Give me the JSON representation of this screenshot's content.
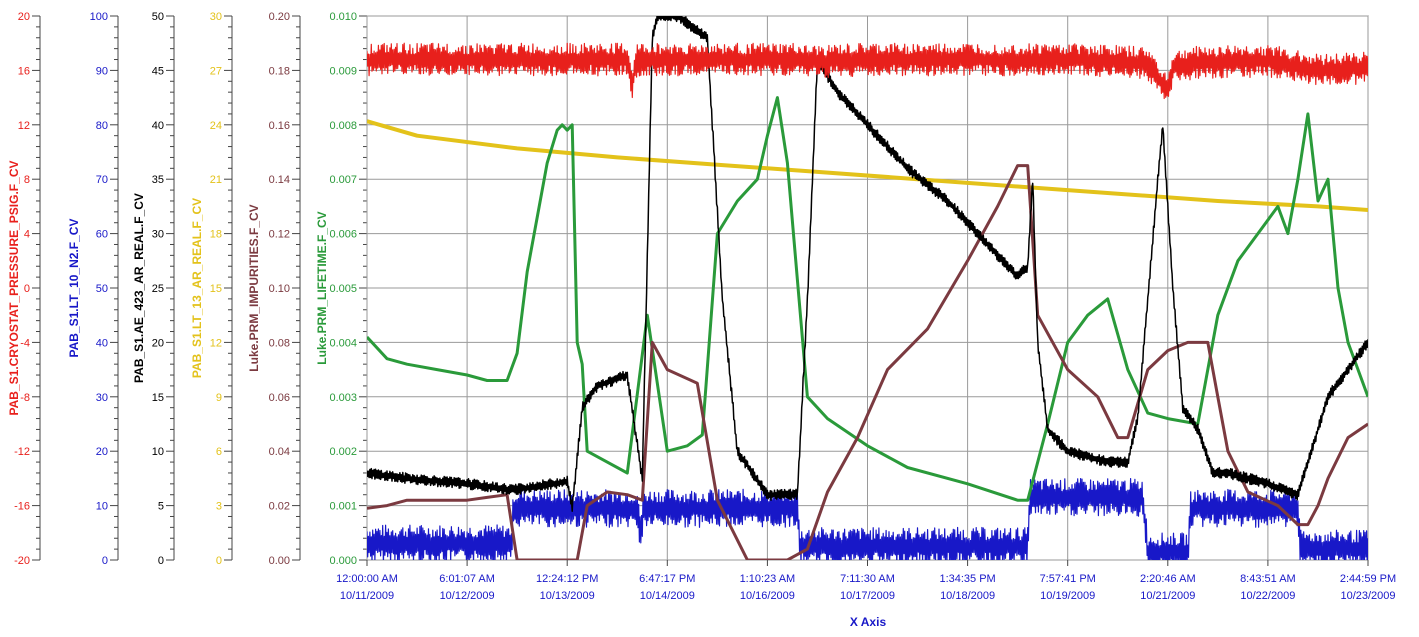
{
  "chart_data": {
    "type": "line",
    "xlabel": "X Axis",
    "x_tick_labels": [
      [
        "12:00:00 AM",
        "10/11/2009"
      ],
      [
        "6:01:07 AM",
        "10/12/2009"
      ],
      [
        "12:24:12 PM",
        "10/13/2009"
      ],
      [
        "6:47:17 PM",
        "10/14/2009"
      ],
      [
        "1:10:23 AM",
        "10/16/2009"
      ],
      [
        "7:11:30 AM",
        "10/17/2009"
      ],
      [
        "1:34:35 PM",
        "10/18/2009"
      ],
      [
        "7:57:41 PM",
        "10/19/2009"
      ],
      [
        "2:20:46 AM",
        "10/21/2009"
      ],
      [
        "8:43:51 AM",
        "10/22/2009"
      ],
      [
        "2:44:59 PM",
        "10/23/2009"
      ]
    ],
    "x_range": [
      0,
      10
    ],
    "grid": true,
    "legend": "none",
    "y_axes": [
      {
        "name": "PAB_S1.CRYOSTAT_PRESSURE_PSIG.F_CV",
        "color": "#e8201c",
        "range": [
          -20,
          20
        ],
        "ticks": [
          "20",
          "16",
          "12",
          "8",
          "4",
          "0",
          "-4",
          "-8",
          "-12",
          "-16",
          "-20"
        ]
      },
      {
        "name": "PAB_S1.LT_10_N2.F_CV",
        "color": "#1818c8",
        "range": [
          0,
          100
        ],
        "ticks": [
          "100",
          "90",
          "80",
          "70",
          "60",
          "50",
          "40",
          "30",
          "20",
          "10",
          "0"
        ]
      },
      {
        "name": "PAB_S1.AE_423_AR_REAL.F_CV",
        "color": "#000000",
        "range": [
          0,
          50
        ],
        "ticks": [
          "50",
          "45",
          "40",
          "35",
          "30",
          "25",
          "20",
          "15",
          "10",
          "5",
          "0"
        ]
      },
      {
        "name": "PAB_S1.LT_13_AR_REAL.F_CV",
        "color": "#e3c21a",
        "range": [
          0,
          30
        ],
        "ticks": [
          "30",
          "27",
          "24",
          "21",
          "18",
          "15",
          "12",
          "9",
          "6",
          "3",
          "0"
        ]
      },
      {
        "name": "Luke.PRM_IMPURITIES.F_CV",
        "color": "#7b3a40",
        "range": [
          0,
          0.2
        ],
        "ticks": [
          "0.20",
          "0.18",
          "0.16",
          "0.14",
          "0.12",
          "0.10",
          "0.08",
          "0.06",
          "0.04",
          "0.02",
          "0.00"
        ]
      },
      {
        "name": "Luke.PRM_LIFETIME.F_CV",
        "color": "#2a9a3a",
        "range": [
          0,
          0.01
        ],
        "ticks": [
          "0.010",
          "0.009",
          "0.008",
          "0.007",
          "0.006",
          "0.005",
          "0.004",
          "0.003",
          "0.002",
          "0.001",
          "0.000"
        ]
      }
    ],
    "series": [
      {
        "name": "PAB_S1.CRYOSTAT_PRESSURE_PSIG.F_CV",
        "axis": 0,
        "color": "#e8201c",
        "width": 1.2,
        "noise": 1.2,
        "x": [
          0,
          1.4,
          1.45,
          1.5,
          2.6,
          2.65,
          2.7,
          4.3,
          4.4,
          5.0,
          6.0,
          7.0,
          7.2,
          7.8,
          8.0,
          8.05,
          8.3,
          9.0,
          9.5,
          10.0
        ],
        "y": [
          16.8,
          16.8,
          16.8,
          16.8,
          16.8,
          15.0,
          16.8,
          16.8,
          16.6,
          16.8,
          16.8,
          16.8,
          16.8,
          16.5,
          14.5,
          16.2,
          16.6,
          16.7,
          16.0,
          16.2
        ]
      },
      {
        "name": "PAB_S1.LT_10_N2.F_CV",
        "axis": 1,
        "color": "#1818c8",
        "width": 1.2,
        "noise": 3.5,
        "x": [
          0,
          1.45,
          1.46,
          2.7,
          2.72,
          2.75,
          2.76,
          4.3,
          4.32,
          6.6,
          6.62,
          7.75,
          7.8,
          8.2,
          8.23,
          9.3,
          9.32,
          10.0
        ],
        "y": [
          3,
          3,
          9.5,
          9.5,
          6,
          6,
          9.5,
          9.5,
          2.5,
          2.5,
          11.5,
          11.5,
          1.5,
          1.5,
          9.5,
          9.5,
          2,
          2
        ]
      },
      {
        "name": "PAB_S1.AE_423_AR_REAL.F_CV",
        "axis": 2,
        "color": "#000000",
        "width": 1.5,
        "noise": 0.5,
        "x": [
          0,
          0.4,
          1.0,
          1.4,
          1.5,
          2.0,
          2.05,
          2.15,
          2.3,
          2.6,
          2.75,
          2.85,
          2.9,
          3.1,
          3.4,
          3.55,
          3.7,
          4.0,
          4.3,
          4.4,
          4.5,
          4.7,
          5.0,
          5.4,
          5.8,
          6.2,
          6.5,
          6.6,
          6.65,
          6.7,
          6.8,
          7.0,
          7.4,
          7.6,
          7.7,
          7.9,
          7.95,
          8.05,
          8.15,
          8.3,
          8.45,
          8.6,
          9.0,
          9.3,
          9.6,
          10.0
        ],
        "y": [
          8,
          7.5,
          7,
          6.5,
          6.5,
          7.2,
          4.8,
          14,
          16,
          17,
          7.5,
          48,
          50,
          50,
          48,
          24,
          10,
          6,
          6,
          24,
          46,
          43,
          40,
          36,
          33,
          29,
          26,
          27,
          35,
          20,
          12,
          10,
          9,
          9,
          13,
          35,
          40,
          25,
          14,
          12,
          8,
          8,
          7,
          6,
          15,
          20
        ]
      },
      {
        "name": "PAB_S1.LT_13_AR_REAL.F_CV",
        "axis": 3,
        "color": "#e3c21a",
        "width": 4,
        "noise": 0,
        "x": [
          0,
          0.5,
          1.5,
          2.5,
          3.5,
          4.5,
          5.5,
          6.5,
          7.5,
          8.5,
          9.5,
          10.0
        ],
        "y": [
          24.2,
          23.4,
          22.7,
          22.2,
          21.8,
          21.4,
          21.0,
          20.6,
          20.2,
          19.8,
          19.5,
          19.3
        ]
      },
      {
        "name": "Luke.PRM_IMPURITIES.F_CV",
        "axis": 4,
        "color": "#7b3a40",
        "width": 3,
        "noise": 0,
        "x": [
          0,
          0.2,
          0.4,
          0.6,
          0.8,
          1.0,
          1.2,
          1.4,
          1.5,
          2.1,
          2.2,
          2.4,
          2.6,
          2.75,
          2.85,
          3.0,
          3.3,
          3.5,
          3.8,
          4.2,
          4.4,
          4.6,
          4.9,
          5.2,
          5.6,
          6.0,
          6.3,
          6.5,
          6.6,
          6.7,
          7.0,
          7.3,
          7.5,
          7.6,
          7.8,
          8.0,
          8.2,
          8.4,
          8.5,
          8.6,
          8.8,
          9.1,
          9.3,
          9.4,
          9.5,
          9.6,
          9.8,
          10.0
        ],
        "y": [
          0.019,
          0.02,
          0.022,
          0.022,
          0.022,
          0.022,
          0.023,
          0.024,
          0.0,
          0.0,
          0.02,
          0.025,
          0.024,
          0.022,
          0.08,
          0.07,
          0.065,
          0.022,
          0.0,
          0.0,
          0.004,
          0.025,
          0.045,
          0.07,
          0.085,
          0.11,
          0.13,
          0.145,
          0.145,
          0.09,
          0.07,
          0.06,
          0.045,
          0.045,
          0.07,
          0.077,
          0.08,
          0.08,
          0.06,
          0.04,
          0.025,
          0.02,
          0.013,
          0.013,
          0.02,
          0.03,
          0.045,
          0.05
        ]
      },
      {
        "name": "Luke.PRM_LIFETIME.F_CV",
        "axis": 5,
        "color": "#2a9a3a",
        "width": 3,
        "noise": 0,
        "x": [
          0,
          0.2,
          0.4,
          0.7,
          1.0,
          1.2,
          1.4,
          1.5,
          1.6,
          1.7,
          1.8,
          1.9,
          1.95,
          2.0,
          2.05,
          2.1,
          2.15,
          2.2,
          2.4,
          2.6,
          2.8,
          3.0,
          3.2,
          3.35,
          3.5,
          3.7,
          3.9,
          4.0,
          4.1,
          4.2,
          4.4,
          4.6,
          5.0,
          5.4,
          6.0,
          6.5,
          6.6,
          6.8,
          7.0,
          7.2,
          7.4,
          7.6,
          7.8,
          8.0,
          8.3,
          8.5,
          8.7,
          8.9,
          9.1,
          9.2,
          9.3,
          9.4,
          9.5,
          9.6,
          9.7,
          9.8,
          10.0
        ],
        "y": [
          0.0041,
          0.0037,
          0.0036,
          0.0035,
          0.0034,
          0.0033,
          0.0033,
          0.0038,
          0.0053,
          0.0063,
          0.0073,
          0.0079,
          0.008,
          0.0079,
          0.008,
          0.004,
          0.0036,
          0.002,
          0.0018,
          0.0016,
          0.0045,
          0.002,
          0.0021,
          0.0023,
          0.006,
          0.0066,
          0.007,
          0.0078,
          0.0085,
          0.0073,
          0.003,
          0.0026,
          0.0021,
          0.0017,
          0.0014,
          0.0011,
          0.0011,
          0.0025,
          0.004,
          0.0045,
          0.0048,
          0.0035,
          0.0027,
          0.0026,
          0.0025,
          0.0045,
          0.0055,
          0.006,
          0.0065,
          0.006,
          0.007,
          0.0082,
          0.0066,
          0.007,
          0.005,
          0.004,
          0.003
        ]
      }
    ]
  }
}
